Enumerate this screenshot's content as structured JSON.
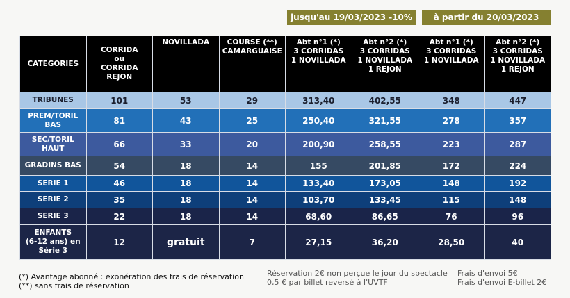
{
  "periods": [
    "jusqu'au 19/03/2023 -10%",
    "à partir du 20/03/2023"
  ],
  "headers": [
    [
      "CATEGORIES"
    ],
    [
      "CORRIDA",
      "ou",
      "CORRIDA",
      "REJON"
    ],
    [
      "NOVILLADA"
    ],
    [
      "COURSE (**)",
      "CAMARGUAISE"
    ],
    [
      "Abt n°1 (*)",
      "3 CORRIDAS",
      "1 NOVILLADA"
    ],
    [
      "Abt n°2 (*)",
      "3 CORRIDAS",
      "1 NOVILLADA",
      "1 REJON"
    ],
    [
      "Abt n°1 (*)",
      "3 CORRIDAS",
      "1 NOVILLADA"
    ],
    [
      "Abt n°2 (*)",
      "3 CORRIDAS",
      "1 NOVILLADA",
      "1 REJON"
    ]
  ],
  "rows": [
    {
      "category": [
        "TRIBUNES"
      ],
      "values": [
        "101",
        "53",
        "29",
        "313,40",
        "402,55",
        "348",
        "447"
      ]
    },
    {
      "category": [
        "PREM/TORIL",
        "BAS"
      ],
      "values": [
        "81",
        "43",
        "25",
        "250,40",
        "321,55",
        "278",
        "357"
      ]
    },
    {
      "category": [
        "SEC/TORIL",
        "HAUT"
      ],
      "values": [
        "66",
        "33",
        "20",
        "200,90",
        "258,55",
        "223",
        "287"
      ]
    },
    {
      "category": [
        "GRADINS BAS"
      ],
      "values": [
        "54",
        "18",
        "14",
        "155",
        "201,85",
        "172",
        "224"
      ]
    },
    {
      "category": [
        "SERIE 1"
      ],
      "values": [
        "46",
        "18",
        "14",
        "133,40",
        "173,05",
        "148",
        "192"
      ]
    },
    {
      "category": [
        "SERIE 2"
      ],
      "values": [
        "35",
        "18",
        "14",
        "103,70",
        "133,45",
        "115",
        "148"
      ]
    },
    {
      "category": [
        "SERIE 3"
      ],
      "values": [
        "22",
        "18",
        "14",
        "68,60",
        "86,65",
        "76",
        "96"
      ]
    },
    {
      "category": [
        "ENFANTS",
        "(6-12 ans) en",
        "Série 3"
      ],
      "values": [
        "12",
        "gratuit",
        "7",
        "27,15",
        "36,20",
        "28,50",
        "40"
      ]
    }
  ],
  "footnotes": {
    "left": [
      "(*) Avantage abonné : exonération des frais de réservation",
      "(**) sans frais de réservation"
    ],
    "middle": [
      "Réservation 2€ non perçue le jour du spectacle",
      "0,5 € par billet reversé à l'UVTF"
    ],
    "right": [
      "Frais d'envoi  5€",
      "Frais d'envoi E-billet 2€"
    ]
  },
  "colors": {
    "period_bg": "#858030",
    "header_bg": "#000000"
  }
}
